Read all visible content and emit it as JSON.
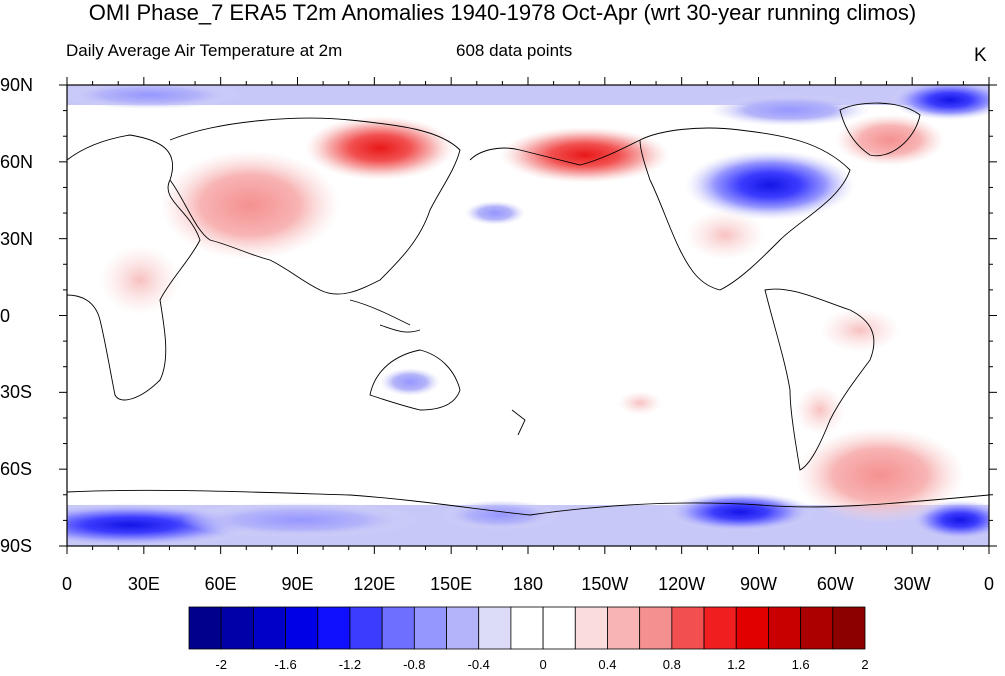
{
  "map": {
    "title": "OMI Phase_7 ERA5 T2m Anomalies 1940-1978 Oct-Apr (wrt 30-year running climos)",
    "subtitle": "Daily Average Air Temperature at 2m",
    "data_points": "608 data points",
    "units": "K",
    "projection": "cylindrical-equidistant",
    "center_longitude": 180,
    "lat_labels": [
      "90N",
      "60N",
      "30N",
      "0",
      "30S",
      "60S",
      "90S"
    ],
    "lon_labels": [
      "0",
      "30E",
      "60E",
      "90E",
      "120E",
      "150E",
      "180",
      "150W",
      "120W",
      "90W",
      "60W",
      "30W",
      "0"
    ],
    "anomaly_regions": [
      {
        "name": "northeast-siberia-warm",
        "lon": 120,
        "lat": 64,
        "value": 1.4
      },
      {
        "name": "bering-alaska-warm",
        "lon": -150,
        "lat": 60,
        "value": 1.4
      },
      {
        "name": "greenland-warm",
        "lon": -40,
        "lat": 68,
        "value": 1.2
      },
      {
        "name": "central-asia-warm",
        "lon": 65,
        "lat": 38,
        "value": 0.8
      },
      {
        "name": "canada-cold",
        "lon": -95,
        "lat": 52,
        "value": -1.8
      },
      {
        "name": "antarctica-cold",
        "lon": 15,
        "lat": -82,
        "value": -1.4
      },
      {
        "name": "south-atlantic-warm",
        "lon": -25,
        "lat": -62,
        "value": 0.8
      }
    ]
  },
  "colorbar": {
    "labels": [
      "-2",
      "-1.6",
      "-1.2",
      "-0.8",
      "-0.4",
      "0",
      "0.4",
      "0.8",
      "1.2",
      "1.6",
      "2"
    ],
    "colors": [
      "#00008C",
      "#0000A8",
      "#0000C8",
      "#0000E6",
      "#1010FF",
      "#3C3CFF",
      "#6E6EFF",
      "#9696FF",
      "#B4B4FA",
      "#DCDCF8",
      "#FFFFFF",
      "#FFFFFF",
      "#FADCDC",
      "#F8B4B4",
      "#F59090",
      "#F25050",
      "#F01E1E",
      "#E00000",
      "#C80000",
      "#AA0000",
      "#8C0000"
    ]
  }
}
